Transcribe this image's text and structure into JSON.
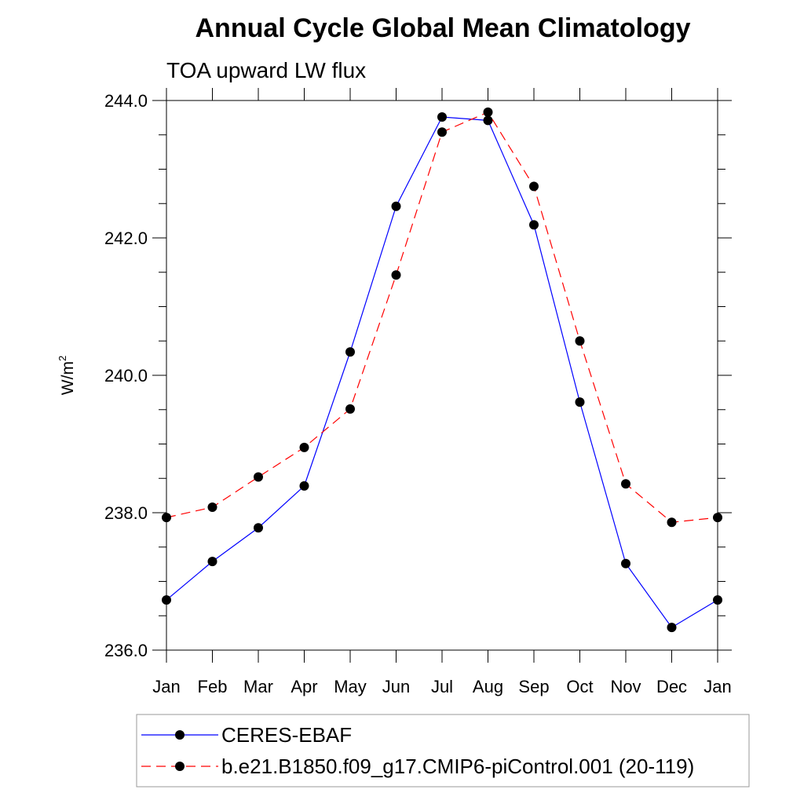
{
  "chart_data": {
    "type": "line",
    "title": "Annual Cycle Global Mean Climatology",
    "subtitle": "TOA upward LW flux",
    "ylabel": "W/m",
    "ylabel_sup": "2",
    "xlabel": "",
    "categories": [
      "Jan",
      "Feb",
      "Mar",
      "Apr",
      "May",
      "Jun",
      "Jul",
      "Aug",
      "Sep",
      "Oct",
      "Nov",
      "Dec",
      "Jan"
    ],
    "ylim": [
      236.0,
      244.0
    ],
    "yticks": [
      "236.0",
      "238.0",
      "240.0",
      "242.0",
      "244.0"
    ],
    "series": [
      {
        "name": "CERES-EBAF",
        "color": "#0000ff",
        "dash": "solid",
        "values": [
          236.73,
          237.29,
          237.78,
          238.39,
          240.34,
          242.46,
          243.76,
          243.71,
          242.19,
          239.61,
          237.26,
          236.33,
          236.73
        ]
      },
      {
        "name": "b.e21.B1850.f09_g17.CMIP6-piControl.001 (20-119)",
        "color": "#ff0000",
        "dash": "dashed",
        "values": [
          237.93,
          238.08,
          238.52,
          238.95,
          239.51,
          241.46,
          243.54,
          243.83,
          242.75,
          240.5,
          238.42,
          237.86,
          237.93
        ]
      }
    ],
    "grid": false,
    "legend_position": "bottom"
  }
}
